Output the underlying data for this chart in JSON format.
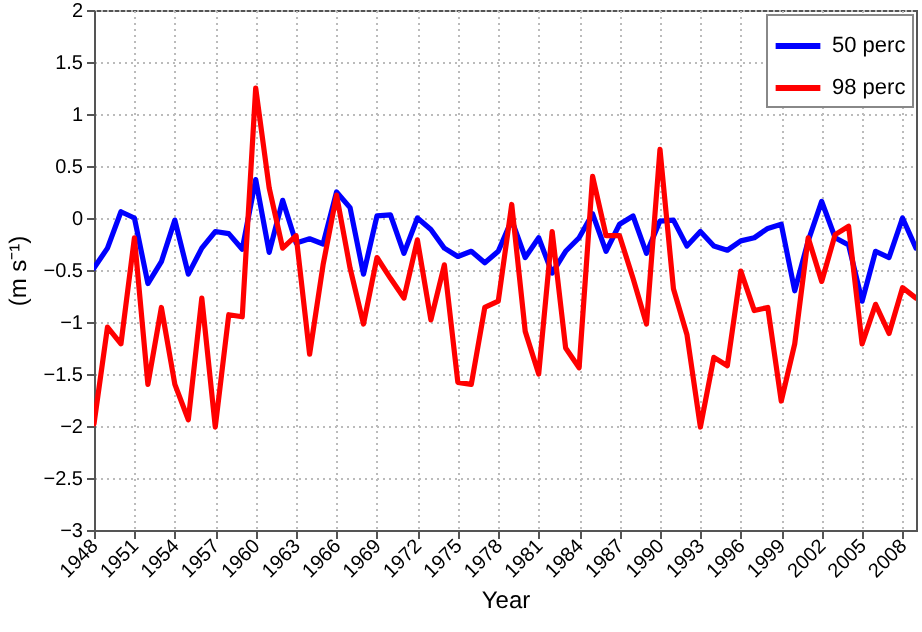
{
  "chart_data": {
    "type": "line",
    "xlabel": "Year",
    "ylabel": "(m s⁻¹)",
    "x": [
      1948,
      1949,
      1950,
      1951,
      1952,
      1953,
      1954,
      1955,
      1956,
      1957,
      1958,
      1959,
      1960,
      1961,
      1962,
      1963,
      1964,
      1965,
      1966,
      1967,
      1968,
      1969,
      1970,
      1971,
      1972,
      1973,
      1974,
      1975,
      1976,
      1977,
      1978,
      1979,
      1980,
      1981,
      1982,
      1983,
      1984,
      1985,
      1986,
      1987,
      1988,
      1989,
      1990,
      1991,
      1992,
      1993,
      1994,
      1995,
      1996,
      1997,
      1998,
      1999,
      2000,
      2001,
      2002,
      2003,
      2004,
      2005,
      2006,
      2007,
      2008,
      2009
    ],
    "series": [
      {
        "name": "50 perc",
        "color": "#0000ff",
        "values": [
          -0.48,
          -0.29,
          0.06,
          0.0,
          -0.63,
          -0.42,
          -0.02,
          -0.54,
          -0.29,
          -0.13,
          -0.15,
          -0.3,
          0.37,
          -0.33,
          0.17,
          -0.24,
          -0.2,
          -0.25,
          0.25,
          0.1,
          -0.54,
          0.02,
          0.03,
          -0.34,
          0.0,
          -0.11,
          -0.29,
          -0.37,
          -0.32,
          -0.43,
          -0.32,
          -0.02,
          -0.38,
          -0.19,
          -0.53,
          -0.32,
          -0.19,
          0.04,
          -0.32,
          -0.06,
          0.02,
          -0.34,
          -0.03,
          -0.02,
          -0.27,
          -0.13,
          -0.27,
          -0.31,
          -0.22,
          -0.19,
          -0.1,
          -0.06,
          -0.7,
          -0.22,
          0.16,
          -0.19,
          -0.26,
          -0.8,
          -0.32,
          -0.38,
          0.0,
          -0.29
        ]
      },
      {
        "name": "98 perc",
        "color": "#ff0000",
        "values": [
          -1.98,
          -1.05,
          -1.21,
          -0.19,
          -1.6,
          -0.86,
          -1.6,
          -1.94,
          -0.77,
          -2.01,
          -0.93,
          -0.95,
          1.25,
          0.29,
          -0.29,
          -0.17,
          -1.31,
          -0.45,
          0.22,
          -0.48,
          -1.02,
          -0.38,
          -0.58,
          -0.77,
          -0.21,
          -0.98,
          -0.45,
          -1.58,
          -1.6,
          -0.86,
          -0.8,
          0.13,
          -1.09,
          -1.5,
          -0.13,
          -1.25,
          -1.44,
          0.4,
          -0.17,
          -0.17,
          -0.58,
          -1.02,
          0.66,
          -0.68,
          -1.12,
          -2.01,
          -1.34,
          -1.42,
          -0.51,
          -0.89,
          -0.86,
          -1.76,
          -1.21,
          -0.19,
          -0.61,
          -0.16,
          -0.08,
          -1.21,
          -0.83,
          -1.11,
          -0.67,
          -0.77
        ]
      }
    ],
    "xlim": [
      1948,
      2009
    ],
    "xticks": [
      1948,
      1951,
      1954,
      1957,
      1960,
      1963,
      1966,
      1969,
      1972,
      1975,
      1978,
      1981,
      1984,
      1987,
      1990,
      1993,
      1996,
      1999,
      2002,
      2005,
      2008
    ],
    "ylim": [
      -3,
      2
    ],
    "yticks": [
      {
        "value": -3,
        "label": "−3"
      },
      {
        "value": -2.5,
        "label": "−2.5"
      },
      {
        "value": -2,
        "label": "−2"
      },
      {
        "value": -1.5,
        "label": "−1.5"
      },
      {
        "value": -1,
        "label": "−1"
      },
      {
        "value": -0.5,
        "label": "−0.5"
      },
      0,
      0.5,
      1,
      1.5,
      2
    ],
    "grid": true,
    "legend": "top right",
    "line_style": "solid"
  }
}
